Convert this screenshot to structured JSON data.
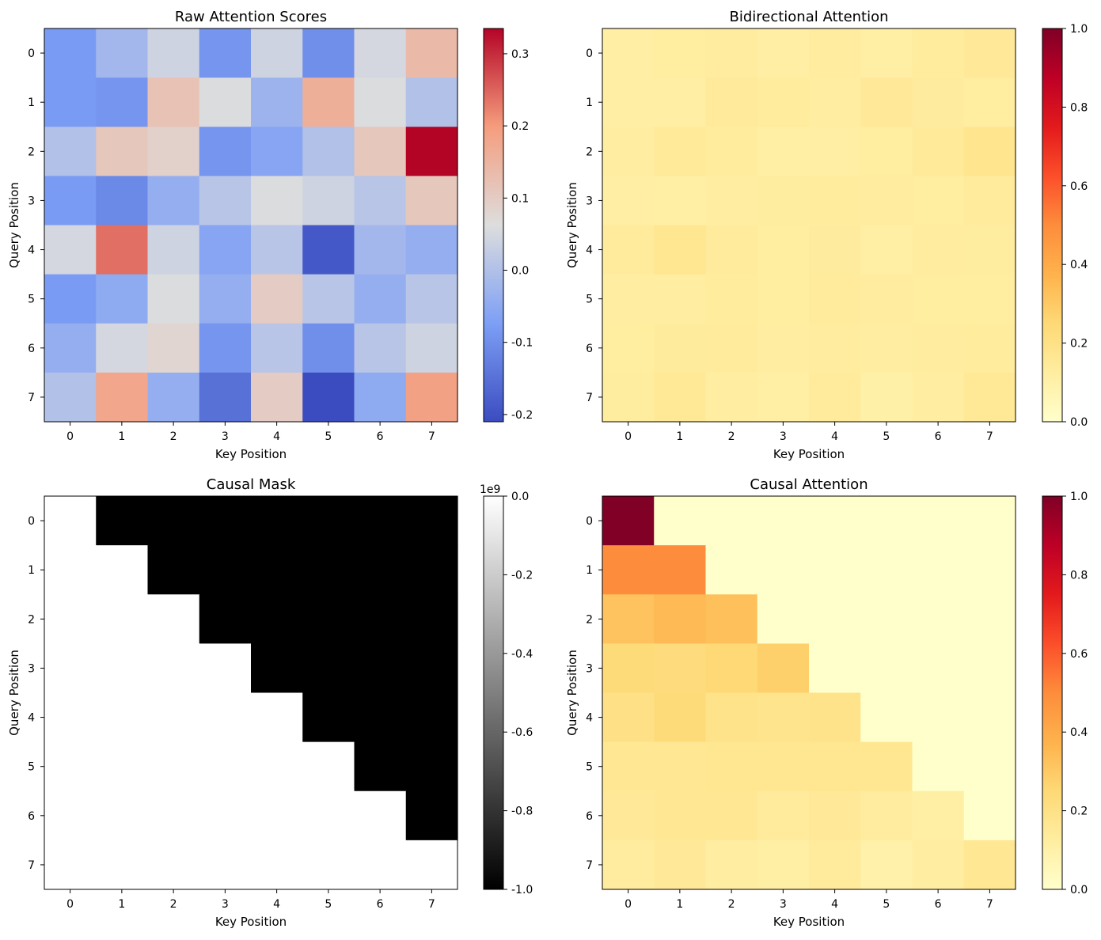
{
  "chart_data": [
    {
      "type": "heatmap",
      "title": "Raw Attention Scores",
      "xlabel": "Key Position",
      "ylabel": "Query Position",
      "x_ticks": [
        "0",
        "1",
        "2",
        "3",
        "4",
        "5",
        "6",
        "7"
      ],
      "y_ticks": [
        "0",
        "1",
        "2",
        "3",
        "4",
        "5",
        "6",
        "7"
      ],
      "colormap": "coolwarm",
      "vmin": -0.21,
      "vmax": 0.335,
      "colorbar_ticks": [
        "-0.2",
        "-0.1",
        "0.0",
        "0.1",
        "0.2",
        "0.3"
      ],
      "colorbar_offset": "",
      "values": [
        [
          -0.08,
          -0.02,
          0.04,
          -0.09,
          0.04,
          -0.1,
          0.05,
          0.14
        ],
        [
          -0.08,
          -0.09,
          0.12,
          0.06,
          -0.03,
          0.16,
          0.06,
          0.0
        ],
        [
          0.0,
          0.11,
          0.09,
          -0.09,
          -0.06,
          0.0,
          0.11,
          0.335
        ],
        [
          -0.08,
          -0.11,
          -0.04,
          0.01,
          0.06,
          0.04,
          0.01,
          0.11
        ],
        [
          0.05,
          0.24,
          0.04,
          -0.06,
          0.01,
          -0.19,
          -0.02,
          -0.04
        ],
        [
          -0.08,
          -0.05,
          0.06,
          -0.04,
          0.1,
          0.01,
          -0.04,
          0.01
        ],
        [
          -0.04,
          0.05,
          0.08,
          -0.09,
          0.01,
          -0.1,
          0.01,
          0.04
        ],
        [
          0.0,
          0.18,
          -0.04,
          -0.15,
          0.1,
          -0.21,
          -0.05,
          0.19
        ]
      ]
    },
    {
      "type": "heatmap",
      "title": "Bidirectional Attention",
      "xlabel": "Key Position",
      "ylabel": "Query Position",
      "x_ticks": [
        "0",
        "1",
        "2",
        "3",
        "4",
        "5",
        "6",
        "7"
      ],
      "y_ticks": [
        "0",
        "1",
        "2",
        "3",
        "4",
        "5",
        "6",
        "7"
      ],
      "colormap": "YlOrRd",
      "vmin": 0,
      "vmax": 1,
      "colorbar_ticks": [
        "0.0",
        "0.2",
        "0.4",
        "0.6",
        "0.8",
        "1.0"
      ],
      "colorbar_offset": "",
      "values": [
        [
          0.117,
          0.124,
          0.132,
          0.116,
          0.132,
          0.114,
          0.134,
          0.148
        ],
        [
          0.117,
          0.116,
          0.141,
          0.134,
          0.123,
          0.148,
          0.135,
          0.126
        ],
        [
          0.122,
          0.143,
          0.134,
          0.114,
          0.117,
          0.124,
          0.143,
          0.178
        ],
        [
          0.117,
          0.111,
          0.12,
          0.127,
          0.134,
          0.131,
          0.126,
          0.14
        ],
        [
          0.14,
          0.17,
          0.139,
          0.126,
          0.135,
          0.11,
          0.13,
          0.127
        ],
        [
          0.12,
          0.123,
          0.134,
          0.124,
          0.14,
          0.129,
          0.125,
          0.126
        ],
        [
          0.125,
          0.136,
          0.14,
          0.118,
          0.131,
          0.118,
          0.13,
          0.134
        ],
        [
          0.127,
          0.152,
          0.122,
          0.111,
          0.139,
          0.104,
          0.121,
          0.155
        ]
      ]
    },
    {
      "type": "heatmap",
      "title": "Causal Mask",
      "xlabel": "Key Position",
      "ylabel": "Query Position",
      "x_ticks": [
        "0",
        "1",
        "2",
        "3",
        "4",
        "5",
        "6",
        "7"
      ],
      "y_ticks": [
        "0",
        "1",
        "2",
        "3",
        "4",
        "5",
        "6",
        "7"
      ],
      "colormap": "gray",
      "vmin": -1,
      "vmax": 0,
      "colorbar_ticks": [
        "-1.0",
        "-0.8",
        "-0.6",
        "-0.4",
        "-0.2",
        "0.0"
      ],
      "colorbar_offset": "1e9",
      "values": [
        [
          0,
          -1,
          -1,
          -1,
          -1,
          -1,
          -1,
          -1
        ],
        [
          0,
          0,
          -1,
          -1,
          -1,
          -1,
          -1,
          -1
        ],
        [
          0,
          0,
          0,
          -1,
          -1,
          -1,
          -1,
          -1
        ],
        [
          0,
          0,
          0,
          0,
          -1,
          -1,
          -1,
          -1
        ],
        [
          0,
          0,
          0,
          0,
          0,
          -1,
          -1,
          -1
        ],
        [
          0,
          0,
          0,
          0,
          0,
          0,
          -1,
          -1
        ],
        [
          0,
          0,
          0,
          0,
          0,
          0,
          0,
          -1
        ],
        [
          0,
          0,
          0,
          0,
          0,
          0,
          0,
          0
        ]
      ]
    },
    {
      "type": "heatmap",
      "title": "Causal Attention",
      "xlabel": "Key Position",
      "ylabel": "Query Position",
      "x_ticks": [
        "0",
        "1",
        "2",
        "3",
        "4",
        "5",
        "6",
        "7"
      ],
      "y_ticks": [
        "0",
        "1",
        "2",
        "3",
        "4",
        "5",
        "6",
        "7"
      ],
      "colormap": "YlOrRd",
      "vmin": 0,
      "vmax": 1,
      "colorbar_ticks": [
        "0.0",
        "0.2",
        "0.4",
        "0.6",
        "0.8",
        "1.0"
      ],
      "colorbar_offset": "",
      "values": [
        [
          1.0,
          0,
          0,
          0,
          0,
          0,
          0,
          0
        ],
        [
          0.5,
          0.5,
          0,
          0,
          0,
          0,
          0,
          0
        ],
        [
          0.32,
          0.35,
          0.33,
          0,
          0,
          0,
          0,
          0
        ],
        [
          0.24,
          0.23,
          0.25,
          0.28,
          0,
          0,
          0,
          0
        ],
        [
          0.2,
          0.24,
          0.19,
          0.18,
          0.19,
          0,
          0,
          0
        ],
        [
          0.16,
          0.16,
          0.17,
          0.17,
          0.17,
          0.17,
          0,
          0
        ],
        [
          0.15,
          0.16,
          0.16,
          0.14,
          0.15,
          0.13,
          0.11,
          0
        ],
        [
          0.13,
          0.15,
          0.12,
          0.11,
          0.14,
          0.1,
          0.12,
          0.16
        ]
      ]
    }
  ]
}
